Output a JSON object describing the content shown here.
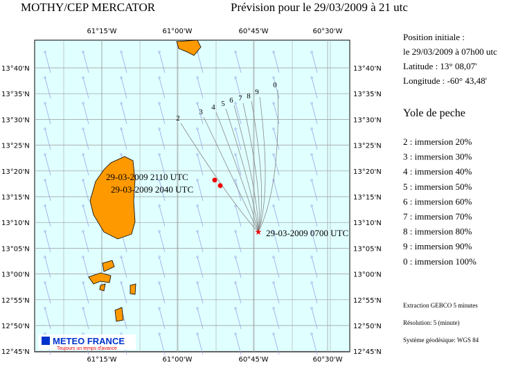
{
  "header": {
    "title": "MOTHY/CEP MERCATOR",
    "forecast": "Prévision pour le 29/03/2009 à 21 utc"
  },
  "map": {
    "lon_labels": [
      "61°15'W",
      "61°00'W",
      "60°45'W",
      "60°30'W"
    ],
    "lat_labels": [
      "13°40'N",
      "13°35'N",
      "13°30'N",
      "13°25'N",
      "13°20'N",
      "13°15'N",
      "13°10'N",
      "13°05'N",
      "13°00'N",
      "12°55'N",
      "12°50'N",
      "12°45'N"
    ],
    "drift_labels": [
      "2",
      "3",
      "4",
      "5",
      "6",
      "7",
      "8",
      "9",
      "0"
    ],
    "points": [
      {
        "label": "29-03-2009 2110 UTC"
      },
      {
        "label": "29-03-2009 2040 UTC"
      },
      {
        "label": "29-03-2009 0700 UTC"
      }
    ],
    "logo": {
      "name": "METEO FRANCE",
      "tagline": "Toujours un temps d'avance"
    }
  },
  "info": {
    "position": [
      "Position initiale :",
      "le 29/03/2009 à 07h00 utc",
      "Latitude : 13° 08,07'",
      "Longitude : -60° 43,48'"
    ],
    "vessel": "Yole de peche",
    "immersions": [
      "2 : immersion  20%",
      "3 : immersion  30%",
      "4 : immersion  40%",
      "5 : immersion  50%",
      "6 : immersion  60%",
      "7 : immersion  70%",
      "8 : immersion  80%",
      "9 : immersion  90%",
      "0 : immersion 100%"
    ],
    "footer": [
      "Extraction GEBCO 5 minutes",
      "Résolution: 5 (minute)",
      "Système géodésique: WGS 84"
    ]
  }
}
